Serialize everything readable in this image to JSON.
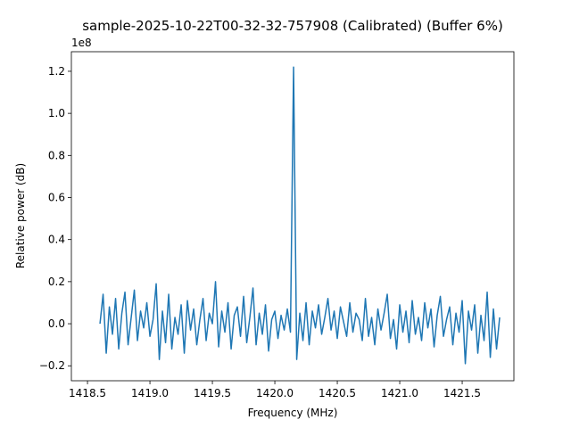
{
  "chart_data": {
    "type": "line",
    "title": "sample-2025-10-22T00-32-32-757908 (Calibrated) (Buffer 6%)",
    "x_label": "Frequency (MHz)",
    "y_label": "Relative power (dB)",
    "y_offset_label": "1e8",
    "color": "#1f77b4",
    "x": [
      1418.6,
      1418.625,
      1418.65,
      1418.675,
      1418.7,
      1418.725,
      1418.75,
      1418.775,
      1418.8,
      1418.825,
      1418.85,
      1418.875,
      1418.9,
      1418.925,
      1418.95,
      1418.975,
      1419,
      1419.025,
      1419.05,
      1419.075,
      1419.1,
      1419.125,
      1419.15,
      1419.175,
      1419.2,
      1419.225,
      1419.25,
      1419.275,
      1419.3,
      1419.325,
      1419.35,
      1419.375,
      1419.4,
      1419.425,
      1419.45,
      1419.475,
      1419.5,
      1419.525,
      1419.55,
      1419.575,
      1419.6,
      1419.625,
      1419.65,
      1419.675,
      1419.7,
      1419.725,
      1419.75,
      1419.775,
      1419.8,
      1419.825,
      1419.85,
      1419.875,
      1419.9,
      1419.925,
      1419.95,
      1419.975,
      1420,
      1420.025,
      1420.05,
      1420.075,
      1420.1,
      1420.125,
      1420.15,
      1420.175,
      1420.2,
      1420.225,
      1420.25,
      1420.275,
      1420.3,
      1420.325,
      1420.35,
      1420.375,
      1420.4,
      1420.425,
      1420.45,
      1420.475,
      1420.5,
      1420.525,
      1420.55,
      1420.575,
      1420.6,
      1420.625,
      1420.65,
      1420.675,
      1420.7,
      1420.725,
      1420.75,
      1420.775,
      1420.8,
      1420.825,
      1420.85,
      1420.875,
      1420.9,
      1420.925,
      1420.95,
      1420.975,
      1421,
      1421.025,
      1421.05,
      1421.075,
      1421.1,
      1421.125,
      1421.15,
      1421.175,
      1421.2,
      1421.225,
      1421.25,
      1421.275,
      1421.3,
      1421.325,
      1421.35,
      1421.375,
      1421.4,
      1421.425,
      1421.45,
      1421.475,
      1421.5,
      1421.525,
      1421.55,
      1421.575,
      1421.6,
      1421.625,
      1421.65,
      1421.675,
      1421.7,
      1421.725,
      1421.75,
      1421.775,
      1421.8
    ],
    "values": [
      0.0,
      0.14,
      -0.14,
      0.08,
      -0.05,
      0.12,
      -0.12,
      0.05,
      0.15,
      -0.1,
      0.03,
      0.16,
      -0.08,
      0.06,
      -0.02,
      0.1,
      -0.06,
      0.02,
      0.19,
      -0.17,
      0.06,
      -0.09,
      0.14,
      -0.12,
      0.03,
      -0.05,
      0.09,
      -0.14,
      0.11,
      -0.03,
      0.07,
      -0.1,
      0.02,
      0.12,
      -0.08,
      0.05,
      0.0,
      0.2,
      -0.11,
      0.06,
      -0.04,
      0.1,
      -0.12,
      0.04,
      0.08,
      -0.06,
      0.13,
      -0.09,
      0.03,
      0.17,
      -0.1,
      0.05,
      -0.05,
      0.09,
      -0.13,
      0.02,
      0.06,
      -0.07,
      0.04,
      -0.03,
      0.07,
      -0.04,
      1.22,
      -0.17,
      0.05,
      -0.08,
      0.1,
      -0.1,
      0.06,
      -0.02,
      0.09,
      -0.05,
      0.03,
      0.12,
      -0.03,
      0.06,
      -0.07,
      0.08,
      0.01,
      -0.06,
      0.1,
      -0.04,
      0.05,
      0.02,
      -0.08,
      0.12,
      -0.06,
      0.03,
      -0.1,
      0.07,
      -0.03,
      0.05,
      0.14,
      -0.07,
      0.02,
      -0.12,
      0.09,
      -0.04,
      0.06,
      -0.09,
      0.11,
      -0.05,
      0.03,
      -0.08,
      0.1,
      -0.02,
      0.07,
      -0.11,
      0.04,
      0.13,
      -0.06,
      0.02,
      0.08,
      -0.1,
      0.05,
      -0.04,
      0.11,
      -0.19,
      0.06,
      -0.03,
      0.09,
      -0.14,
      0.04,
      -0.08,
      0.15,
      -0.16,
      0.07,
      -0.12,
      0.03
    ],
    "xlim": [
      1418.371,
      1421.914
    ],
    "ylim": [
      -0.271,
      1.293
    ],
    "xticks": [
      1418.5,
      {
        "value": 1419,
        "label": "1419.0"
      },
      1419.5,
      {
        "value": 1420,
        "label": "1420.0"
      },
      1420.5,
      {
        "value": 1421,
        "label": "1421.0"
      },
      1421.5
    ],
    "yticks": [
      {
        "value": -0.2,
        "label": "−0.2"
      },
      {
        "value": 0,
        "label": "0.0"
      },
      0.2,
      0.4,
      0.6,
      0.8,
      {
        "value": 1,
        "label": "1.0"
      },
      1.2
    ]
  }
}
